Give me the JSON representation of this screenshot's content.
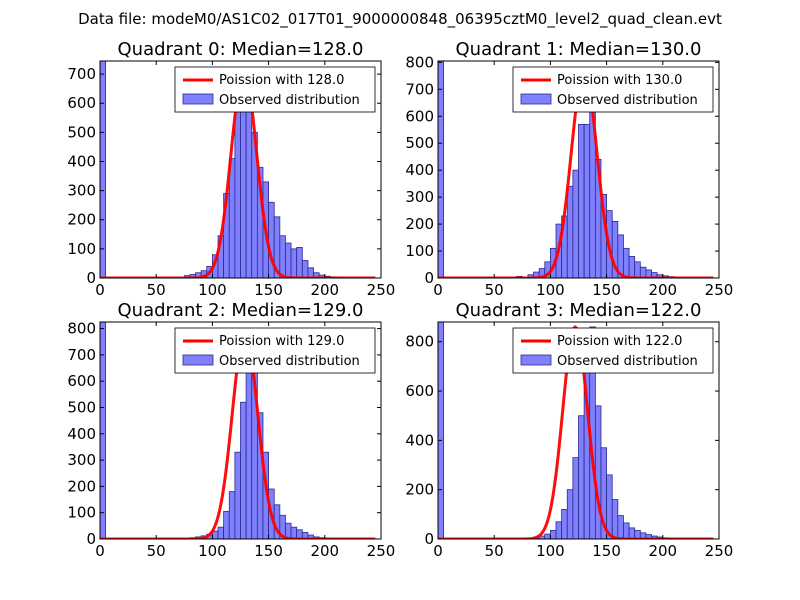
{
  "suptitle": "Data file: modeM0/AS1C02_017T01_9000000848_06395cztM0_level2_quad_clean.evt",
  "colors": {
    "fit": "#ff0000",
    "hist_fill": "#8080ff",
    "hist_edge": "#2a2a8a"
  },
  "chart_data": [
    {
      "type": "bar",
      "title": "Quadrant 0: Median=128.0",
      "xlim": [
        0,
        250
      ],
      "ylim": [
        0,
        745
      ],
      "xticks": [
        0,
        50,
        100,
        150,
        200,
        250
      ],
      "yticks": [
        0,
        100,
        200,
        300,
        400,
        500,
        600,
        700
      ],
      "bin_width": 5,
      "legend": {
        "fit_label": "Poission with 128.0",
        "hist_label": "Observed distribution",
        "position": "upper right"
      },
      "fit": {
        "mean": 128.0,
        "peak": 712,
        "xmin": 0,
        "xmax": 245
      },
      "bins": [
        [
          0,
          745
        ],
        [
          75,
          8
        ],
        [
          80,
          12
        ],
        [
          85,
          18
        ],
        [
          90,
          25
        ],
        [
          95,
          40
        ],
        [
          100,
          80
        ],
        [
          105,
          145
        ],
        [
          110,
          290
        ],
        [
          115,
          410
        ],
        [
          120,
          580
        ],
        [
          125,
          660
        ],
        [
          130,
          640
        ],
        [
          135,
          500
        ],
        [
          140,
          380
        ],
        [
          145,
          330
        ],
        [
          150,
          260
        ],
        [
          155,
          210
        ],
        [
          160,
          145
        ],
        [
          165,
          120
        ],
        [
          170,
          100
        ],
        [
          175,
          105
        ],
        [
          180,
          60
        ],
        [
          185,
          35
        ],
        [
          190,
          18
        ],
        [
          195,
          10
        ],
        [
          200,
          6
        ],
        [
          205,
          4
        ],
        [
          210,
          3
        ]
      ]
    },
    {
      "type": "bar",
      "title": "Quadrant 1: Median=130.0",
      "xlim": [
        0,
        250
      ],
      "ylim": [
        0,
        805
      ],
      "xticks": [
        0,
        50,
        100,
        150,
        200,
        250
      ],
      "yticks": [
        0,
        100,
        200,
        300,
        400,
        500,
        600,
        700,
        800
      ],
      "bin_width": 5,
      "legend": {
        "fit_label": "Poission with 130.0",
        "hist_label": "Observed distribution",
        "position": "upper right"
      },
      "fit": {
        "mean": 130.0,
        "peak": 770,
        "xmin": 0,
        "xmax": 245
      },
      "bins": [
        [
          0,
          805
        ],
        [
          70,
          6
        ],
        [
          80,
          12
        ],
        [
          85,
          22
        ],
        [
          90,
          35
        ],
        [
          95,
          60
        ],
        [
          100,
          110
        ],
        [
          105,
          200
        ],
        [
          110,
          230
        ],
        [
          115,
          340
        ],
        [
          120,
          400
        ],
        [
          125,
          570
        ],
        [
          130,
          570
        ],
        [
          135,
          640
        ],
        [
          140,
          440
        ],
        [
          145,
          310
        ],
        [
          150,
          250
        ],
        [
          155,
          210
        ],
        [
          160,
          160
        ],
        [
          165,
          110
        ],
        [
          170,
          80
        ],
        [
          175,
          60
        ],
        [
          180,
          40
        ],
        [
          185,
          30
        ],
        [
          190,
          20
        ],
        [
          195,
          12
        ],
        [
          200,
          8
        ],
        [
          205,
          5
        ],
        [
          210,
          3
        ]
      ]
    },
    {
      "type": "bar",
      "title": "Quadrant 2: Median=129.0",
      "xlim": [
        0,
        250
      ],
      "ylim": [
        0,
        825
      ],
      "xticks": [
        0,
        50,
        100,
        150,
        200,
        250
      ],
      "yticks": [
        0,
        100,
        200,
        300,
        400,
        500,
        600,
        700,
        800
      ],
      "bin_width": 5,
      "legend": {
        "fit_label": "Poission with 129.0",
        "hist_label": "Observed distribution",
        "position": "upper right"
      },
      "fit": {
        "mean": 129.0,
        "peak": 785,
        "xmin": 0,
        "xmax": 245
      },
      "bins": [
        [
          0,
          825
        ],
        [
          80,
          5
        ],
        [
          85,
          8
        ],
        [
          90,
          12
        ],
        [
          95,
          18
        ],
        [
          100,
          30
        ],
        [
          105,
          45
        ],
        [
          110,
          105
        ],
        [
          115,
          180
        ],
        [
          120,
          330
        ],
        [
          125,
          520
        ],
        [
          130,
          770
        ],
        [
          135,
          770
        ],
        [
          140,
          480
        ],
        [
          145,
          330
        ],
        [
          150,
          190
        ],
        [
          155,
          130
        ],
        [
          160,
          90
        ],
        [
          165,
          60
        ],
        [
          170,
          45
        ],
        [
          175,
          35
        ],
        [
          180,
          25
        ],
        [
          185,
          15
        ],
        [
          190,
          8
        ],
        [
          195,
          5
        ],
        [
          200,
          3
        ]
      ]
    },
    {
      "type": "bar",
      "title": "Quadrant 3: Median=122.0",
      "xlim": [
        0,
        250
      ],
      "ylim": [
        0,
        880
      ],
      "xticks": [
        0,
        50,
        100,
        150,
        200,
        250
      ],
      "yticks": [
        0,
        200,
        400,
        600,
        800
      ],
      "bin_width": 5,
      "legend": {
        "fit_label": "Poission with 122.0",
        "hist_label": "Observed distribution",
        "position": "upper right"
      },
      "fit": {
        "mean": 122.0,
        "peak": 860,
        "xmin": 0,
        "xmax": 245
      },
      "bins": [
        [
          0,
          880
        ],
        [
          80,
          4
        ],
        [
          85,
          8
        ],
        [
          90,
          12
        ],
        [
          95,
          20
        ],
        [
          100,
          35
        ],
        [
          105,
          70
        ],
        [
          110,
          120
        ],
        [
          115,
          200
        ],
        [
          120,
          330
        ],
        [
          125,
          500
        ],
        [
          130,
          780
        ],
        [
          135,
          860
        ],
        [
          140,
          540
        ],
        [
          145,
          370
        ],
        [
          150,
          260
        ],
        [
          155,
          160
        ],
        [
          160,
          95
        ],
        [
          165,
          65
        ],
        [
          170,
          45
        ],
        [
          175,
          35
        ],
        [
          180,
          25
        ],
        [
          185,
          18
        ],
        [
          190,
          12
        ],
        [
          195,
          8
        ],
        [
          200,
          5
        ],
        [
          205,
          3
        ]
      ]
    }
  ]
}
